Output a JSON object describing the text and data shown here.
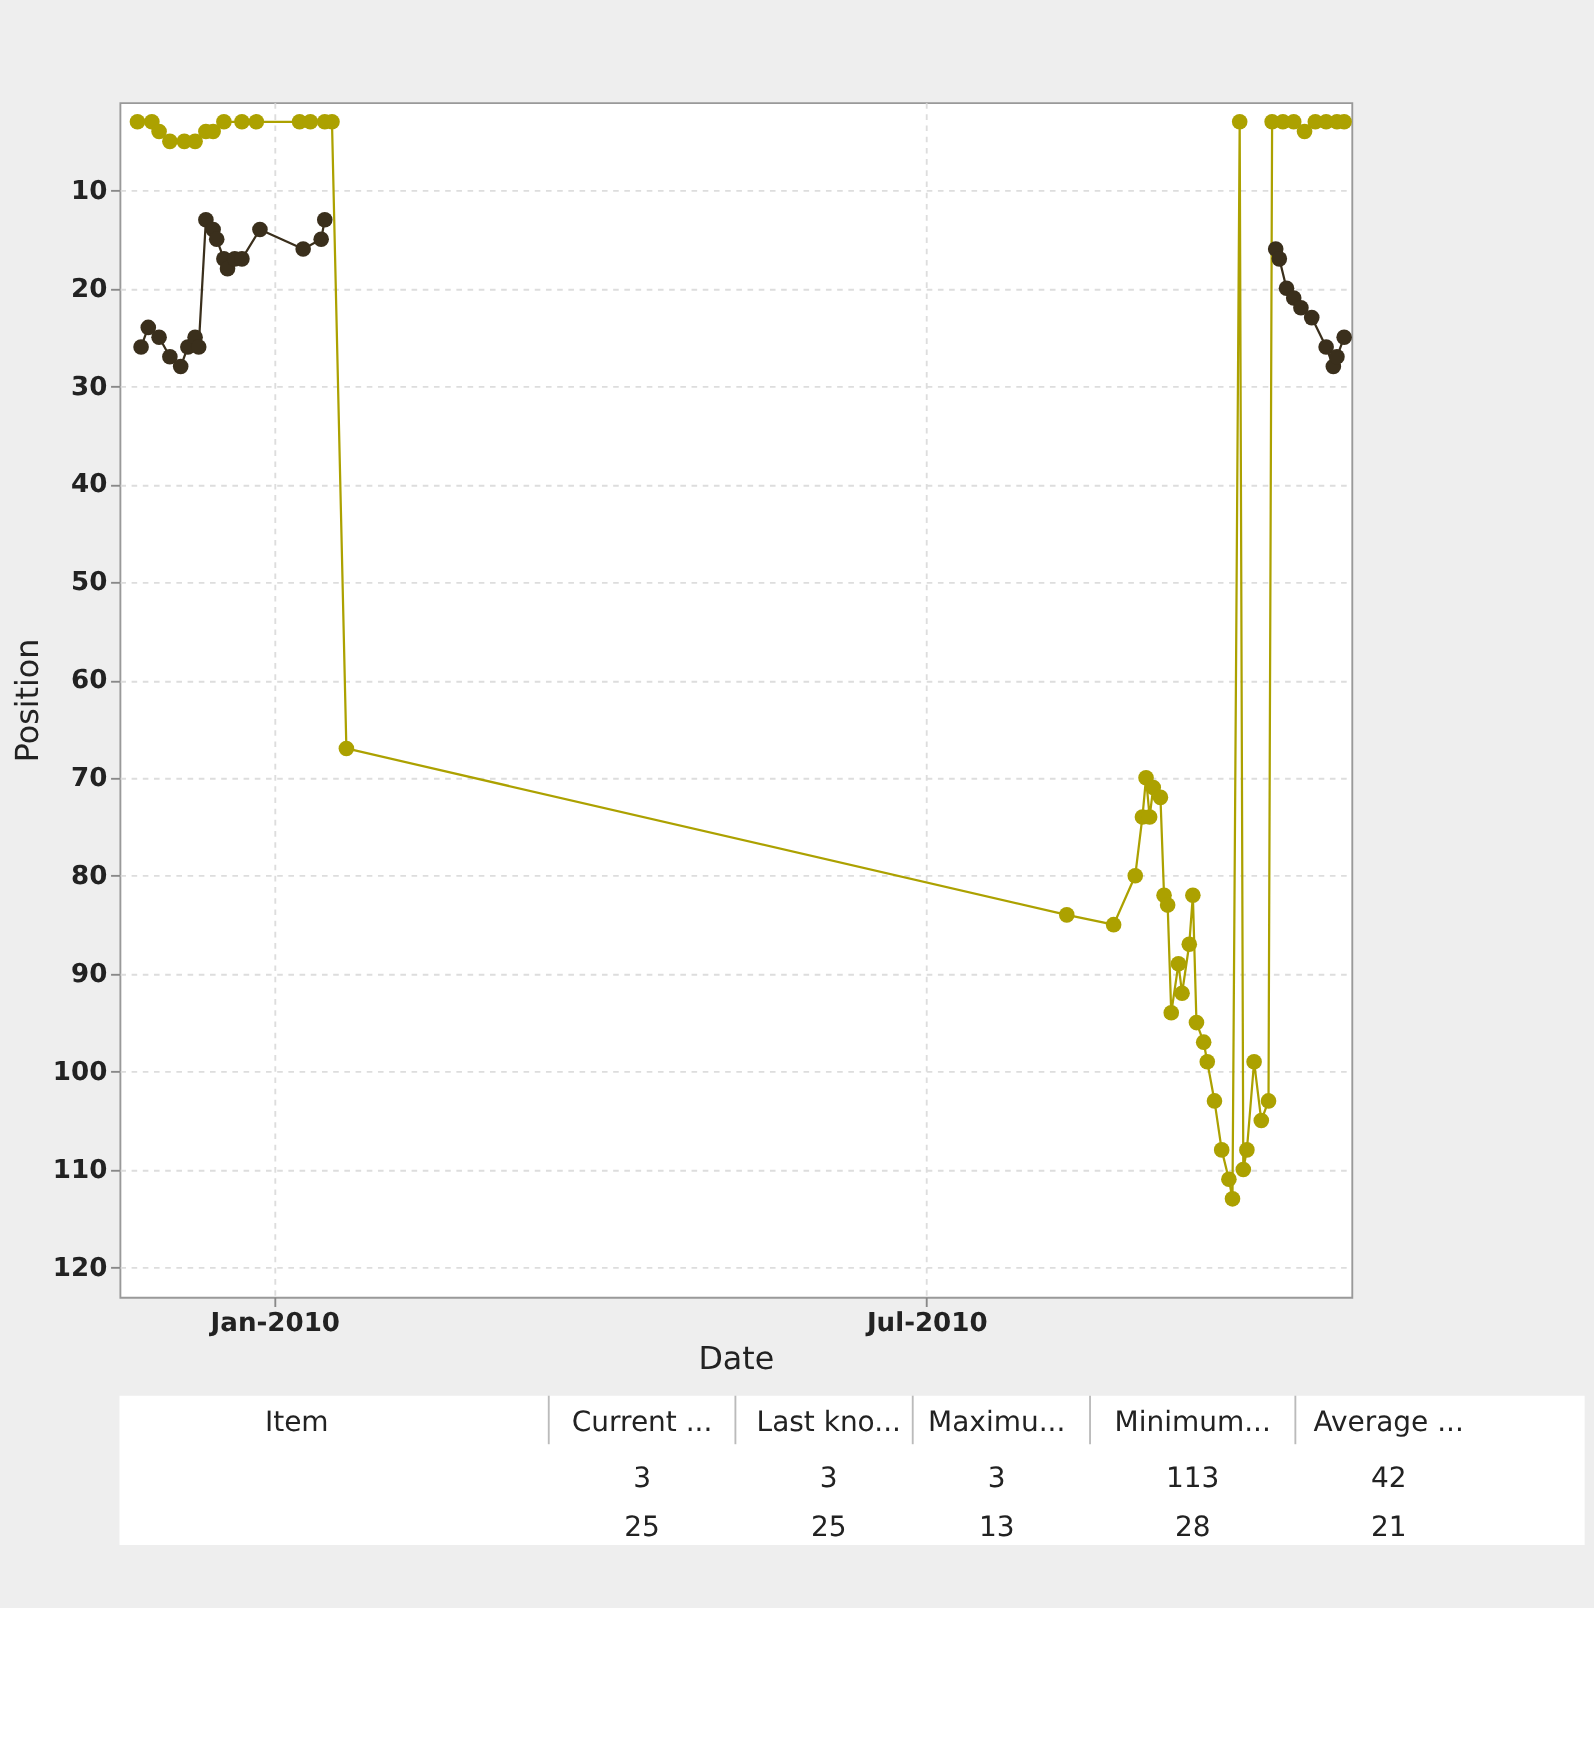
{
  "chart_data": {
    "type": "line",
    "xlabel": "Date",
    "ylabel": "Position",
    "xlim": [
      "2009-11-19",
      "2010-10-27"
    ],
    "xticks": [
      {
        "value": "2010-01-01",
        "label": "Jan-2010"
      },
      {
        "value": "2010-07-01",
        "label": "Jul-2010"
      }
    ],
    "ylim": [
      123,
      1
    ],
    "yticks": [
      10,
      20,
      30,
      40,
      50,
      60,
      70,
      80,
      90,
      100,
      110,
      120
    ],
    "grid": true,
    "legend": false,
    "marker": "circle",
    "line_style": "solid",
    "series": [
      {
        "color": "#aca100",
        "x": [
          "2009-11-24",
          "2009-11-28",
          "2009-11-30",
          "2009-12-03",
          "2009-12-07",
          "2009-12-10",
          "2009-12-13",
          "2009-12-15",
          "2009-12-18",
          "2009-12-23",
          "2009-12-27",
          "2010-01-08",
          "2010-01-11",
          "2010-01-15",
          "2010-01-17",
          "2010-01-21",
          "2010-08-09",
          "2010-08-22",
          "2010-08-28",
          "2010-08-30",
          "2010-08-31",
          "2010-09-01",
          "2010-09-02",
          "2010-09-04",
          "2010-09-05",
          "2010-09-06",
          "2010-09-07",
          "2010-09-09",
          "2010-09-10",
          "2010-09-12",
          "2010-09-13",
          "2010-09-14",
          "2010-09-16",
          "2010-09-17",
          "2010-09-19",
          "2010-09-21",
          "2010-09-23",
          "2010-09-24",
          "2010-09-26",
          "2010-09-27",
          "2010-09-28",
          "2010-09-30",
          "2010-10-02",
          "2010-10-04",
          "2010-10-05",
          "2010-10-08",
          "2010-10-11",
          "2010-10-14",
          "2010-10-17",
          "2010-10-20",
          "2010-10-23",
          "2010-10-25"
        ],
        "values": [
          3,
          3,
          4,
          5,
          5,
          5,
          4,
          4,
          3,
          3,
          3,
          3,
          3,
          3,
          3,
          67,
          84,
          85,
          80,
          74,
          70,
          74,
          71,
          72,
          82,
          83,
          94,
          89,
          92,
          87,
          82,
          95,
          97,
          99,
          103,
          108,
          111,
          113,
          3,
          110,
          108,
          99,
          105,
          103,
          3,
          3,
          3,
          4,
          3,
          3,
          3,
          3
        ]
      },
      {
        "color": "#3a2f1c",
        "x": [
          "2009-11-25",
          "2009-11-27",
          "2009-11-30",
          "2009-12-03",
          "2009-12-06",
          "2009-12-08",
          "2009-12-10",
          "2009-12-11",
          "2009-12-13",
          "2009-12-15",
          "2009-12-16",
          "2009-12-18",
          "2009-12-19",
          "2009-12-21",
          "2009-12-23",
          "2009-12-28",
          "2010-01-09",
          "2010-01-14",
          "2010-01-15",
          "2010-05-01",
          "2010-10-06",
          "2010-10-07",
          "2010-10-09",
          "2010-10-11",
          "2010-10-13",
          "2010-10-16",
          "2010-10-20",
          "2010-10-22",
          "2010-10-23",
          "2010-10-25"
        ],
        "values": [
          26,
          24,
          25,
          27,
          28,
          26,
          25,
          26,
          13,
          14,
          15,
          17,
          18,
          17,
          17,
          14,
          16,
          15,
          13,
          null,
          16,
          17,
          20,
          21,
          22,
          23,
          26,
          28,
          27,
          25
        ]
      }
    ],
    "annotations": [
      "Item",
      "Current ...",
      "Last kno...",
      "Maximu...",
      "Minimum...",
      "Average ...",
      "3",
      "3",
      "3",
      "113",
      "42",
      "25",
      "25",
      "13",
      "28",
      "21"
    ]
  }
}
